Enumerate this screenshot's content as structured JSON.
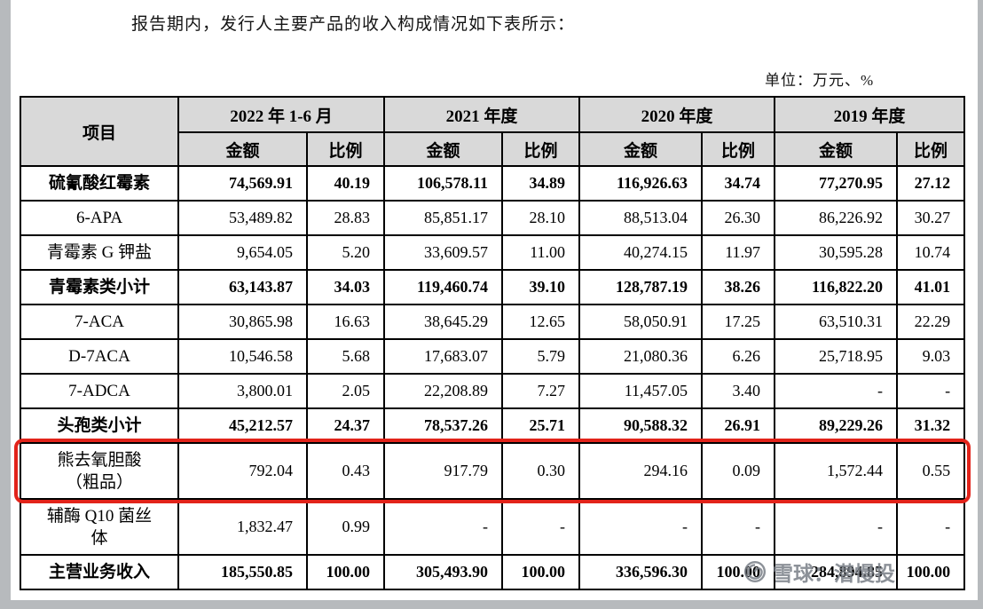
{
  "page": {
    "intro": "报告期内，发行人主要产品的收入构成情况如下表所示：",
    "unit_label": "单位：万元、%"
  },
  "table": {
    "header": {
      "item": "项目",
      "amount": "金额",
      "ratio": "比例",
      "periods": [
        "2022 年 1-6 月",
        "2021 年度",
        "2020 年度",
        "2019 年度"
      ]
    },
    "rows": [
      {
        "name": "硫氰酸红霉素",
        "bold": true,
        "values": [
          "74,569.91",
          "40.19",
          "106,578.11",
          "34.89",
          "116,926.63",
          "34.74",
          "77,270.95",
          "27.12"
        ]
      },
      {
        "name": "6-APA",
        "values": [
          "53,489.82",
          "28.83",
          "85,851.17",
          "28.10",
          "88,513.04",
          "26.30",
          "86,226.92",
          "30.27"
        ]
      },
      {
        "name": "青霉素 G 钾盐",
        "values": [
          "9,654.05",
          "5.20",
          "33,609.57",
          "11.00",
          "40,274.15",
          "11.97",
          "30,595.28",
          "10.74"
        ]
      },
      {
        "name": "青霉素类小计",
        "bold": true,
        "values": [
          "63,143.87",
          "34.03",
          "119,460.74",
          "39.10",
          "128,787.19",
          "38.26",
          "116,822.20",
          "41.01"
        ]
      },
      {
        "name": "7-ACA",
        "values": [
          "30,865.98",
          "16.63",
          "38,645.29",
          "12.65",
          "58,050.91",
          "17.25",
          "63,510.31",
          "22.29"
        ]
      },
      {
        "name": "D-7ACA",
        "values": [
          "10,546.58",
          "5.68",
          "17,683.07",
          "5.79",
          "21,080.36",
          "6.26",
          "25,718.95",
          "9.03"
        ]
      },
      {
        "name": "7-ADCA",
        "values": [
          "3,800.01",
          "2.05",
          "22,208.89",
          "7.27",
          "11,457.05",
          "3.40",
          "-",
          "-"
        ]
      },
      {
        "name": "头孢类小计",
        "bold": true,
        "values": [
          "45,212.57",
          "24.37",
          "78,537.26",
          "25.71",
          "90,588.32",
          "26.91",
          "89,229.26",
          "31.32"
        ]
      },
      {
        "name": "熊去氧胆酸\n（粗品）",
        "tall": true,
        "highlight": true,
        "values": [
          "792.04",
          "0.43",
          "917.79",
          "0.30",
          "294.16",
          "0.09",
          "1,572.44",
          "0.55"
        ]
      },
      {
        "name": "辅酶 Q10 菌丝\n体",
        "tall": true,
        "values": [
          "1,832.47",
          "0.99",
          "-",
          "-",
          "-",
          "-",
          "-",
          "-"
        ]
      },
      {
        "name": "主营业务收入",
        "bold": true,
        "values": [
          "185,550.85",
          "100.00",
          "305,493.90",
          "100.00",
          "336,596.30",
          "100.00",
          "284,894.85",
          "100.00"
        ]
      }
    ]
  },
  "colors": {
    "highlight_red": "#e2231a",
    "header_bg": "#d9d9d9"
  },
  "watermark": {
    "text": "雪球：潜慢投"
  }
}
